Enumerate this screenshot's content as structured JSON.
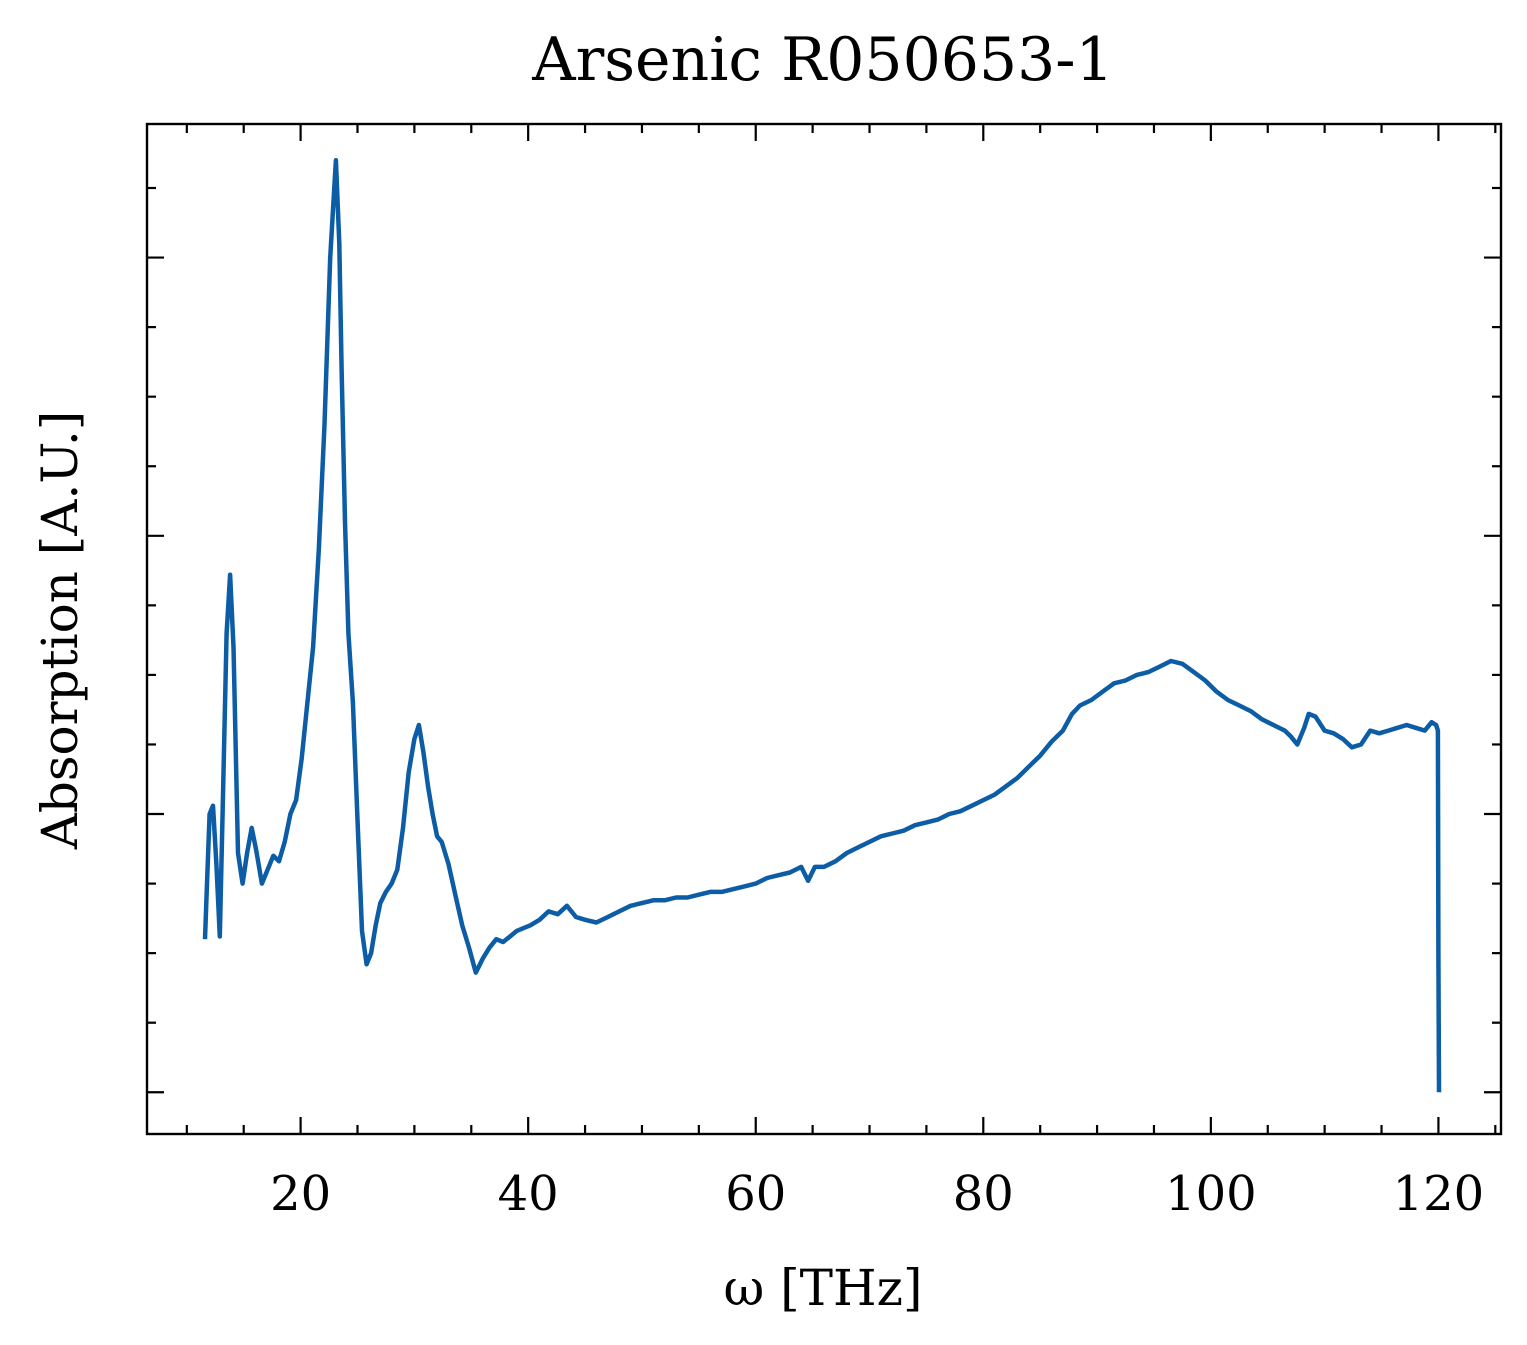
{
  "chart_data": {
    "type": "line",
    "title": "Arsenic R050653-1",
    "xlabel": "ω [THz]",
    "ylabel": "Absorption [A.U.]",
    "xlim": [
      6.5,
      125.5
    ],
    "ylim": [
      -0.15,
      3.48
    ],
    "xticks": [
      20,
      40,
      60,
      80,
      100,
      120
    ],
    "xtick_labels": [
      "20",
      "40",
      "60",
      "80",
      "100",
      "120"
    ],
    "x_minor_step": 5,
    "yticks": [
      0,
      1,
      2,
      3
    ],
    "ytick_labels": [
      "",
      "",
      "",
      ""
    ],
    "y_minor_step": 0.25,
    "grid": false,
    "legend": "none",
    "line_color": "#0C5DA5",
    "series": [
      {
        "x": [
          11.6,
          11.75,
          12.0,
          12.3,
          12.6,
          12.9,
          13.2,
          13.5,
          13.8,
          14.1,
          14.5,
          14.9,
          15.3,
          15.7,
          16.1,
          16.6,
          17.1,
          17.6,
          18.1,
          18.6,
          19.1,
          19.6,
          20.1,
          20.6,
          21.1,
          21.6,
          22.1,
          22.6,
          23.1,
          23.4,
          23.6,
          23.9,
          24.2,
          24.6,
          25.0,
          25.4,
          25.8,
          26.2,
          26.6,
          27.0,
          27.5,
          28.0,
          28.5,
          29.0,
          29.5,
          30.0,
          30.4,
          30.8,
          31.2,
          31.6,
          32.0,
          32.4,
          33.0,
          33.6,
          34.2,
          34.8,
          35.4,
          36.0,
          36.6,
          37.2,
          37.8,
          38.4,
          39.0,
          39.6,
          40.2,
          41.0,
          41.8,
          42.6,
          43.4,
          44.2,
          45.0,
          46.0,
          47.0,
          48.0,
          49.0,
          50.0,
          51.0,
          52.0,
          53.0,
          54.0,
          55.0,
          56.0,
          57.0,
          58.0,
          59.0,
          60.0,
          61.0,
          62.0,
          63.0,
          64.0,
          64.6,
          65.2,
          66.0,
          67.0,
          68.0,
          69.0,
          70.0,
          71.0,
          72.0,
          73.0,
          74.0,
          75.0,
          76.0,
          77.0,
          78.0,
          79.0,
          80.0,
          81.0,
          82.0,
          83.0,
          84.0,
          85.0,
          86.0,
          87.0,
          87.8,
          88.5,
          89.5,
          90.5,
          91.5,
          92.5,
          93.5,
          94.5,
          95.5,
          96.5,
          97.5,
          98.5,
          99.5,
          100.5,
          101.5,
          102.5,
          103.5,
          104.5,
          105.5,
          106.5,
          107.0,
          107.6,
          108.2,
          108.6,
          109.2,
          110.0,
          110.8,
          111.6,
          112.4,
          113.2,
          114.0,
          114.8,
          115.6,
          116.4,
          117.2,
          118.0,
          118.8,
          119.4,
          119.8,
          119.95,
          120.0,
          120.05
        ],
        "y": [
          0.55,
          0.72,
          1.0,
          1.03,
          0.82,
          0.56,
          1.1,
          1.65,
          1.86,
          1.6,
          0.86,
          0.75,
          0.86,
          0.95,
          0.87,
          0.75,
          0.8,
          0.85,
          0.83,
          0.9,
          1.0,
          1.05,
          1.2,
          1.4,
          1.6,
          1.95,
          2.4,
          3.0,
          3.35,
          3.05,
          2.6,
          2.05,
          1.65,
          1.4,
          0.98,
          0.58,
          0.46,
          0.5,
          0.6,
          0.68,
          0.72,
          0.75,
          0.8,
          0.95,
          1.15,
          1.27,
          1.32,
          1.22,
          1.1,
          1.0,
          0.92,
          0.9,
          0.82,
          0.71,
          0.6,
          0.52,
          0.43,
          0.48,
          0.52,
          0.55,
          0.54,
          0.56,
          0.58,
          0.59,
          0.6,
          0.62,
          0.65,
          0.64,
          0.67,
          0.63,
          0.62,
          0.61,
          0.63,
          0.65,
          0.67,
          0.68,
          0.69,
          0.69,
          0.7,
          0.7,
          0.71,
          0.72,
          0.72,
          0.73,
          0.74,
          0.75,
          0.77,
          0.78,
          0.79,
          0.81,
          0.76,
          0.81,
          0.81,
          0.83,
          0.86,
          0.88,
          0.9,
          0.92,
          0.93,
          0.94,
          0.96,
          0.97,
          0.98,
          1.0,
          1.01,
          1.03,
          1.05,
          1.07,
          1.1,
          1.13,
          1.17,
          1.21,
          1.26,
          1.3,
          1.36,
          1.39,
          1.41,
          1.44,
          1.47,
          1.48,
          1.5,
          1.51,
          1.53,
          1.55,
          1.54,
          1.51,
          1.48,
          1.44,
          1.41,
          1.39,
          1.37,
          1.34,
          1.32,
          1.3,
          1.28,
          1.25,
          1.31,
          1.36,
          1.35,
          1.3,
          1.29,
          1.27,
          1.24,
          1.25,
          1.3,
          1.29,
          1.3,
          1.31,
          1.32,
          1.31,
          1.3,
          1.33,
          1.32,
          1.3,
          0.5,
          0.0
        ]
      }
    ]
  }
}
